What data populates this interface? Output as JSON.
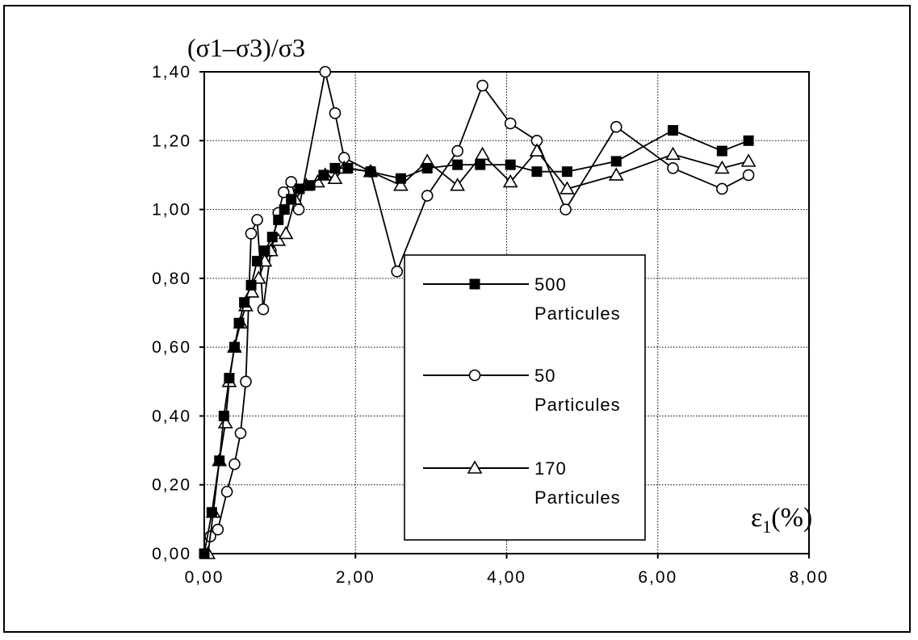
{
  "chart_data": {
    "type": "line",
    "ylabel": "(σ1–σ3)/σ3",
    "xlabel": "ε",
    "xlabel_sub": "1",
    "xlabel_suffix": "(%)",
    "xlim": [
      0,
      8
    ],
    "ylim": [
      0,
      1.4
    ],
    "x_ticks": [
      "0,00",
      "2,00",
      "4,00",
      "6,00",
      "8,00"
    ],
    "y_ticks": [
      "0,00",
      "0,20",
      "0,40",
      "0,60",
      "0,80",
      "1,00",
      "1,20",
      "1,40"
    ],
    "grid": true,
    "legend_position": "center",
    "series": [
      {
        "name": "500",
        "name_line2": "Particules",
        "marker": "filled-square",
        "points": [
          [
            0.0,
            0.0
          ],
          [
            0.1,
            0.12
          ],
          [
            0.2,
            0.27
          ],
          [
            0.26,
            0.4
          ],
          [
            0.33,
            0.51
          ],
          [
            0.4,
            0.6
          ],
          [
            0.46,
            0.67
          ],
          [
            0.53,
            0.73
          ],
          [
            0.62,
            0.78
          ],
          [
            0.7,
            0.85
          ],
          [
            0.8,
            0.88
          ],
          [
            0.9,
            0.92
          ],
          [
            0.98,
            0.97
          ],
          [
            1.06,
            1.0
          ],
          [
            1.15,
            1.03
          ],
          [
            1.26,
            1.06
          ],
          [
            1.4,
            1.07
          ],
          [
            1.58,
            1.1
          ],
          [
            1.73,
            1.12
          ],
          [
            1.9,
            1.12
          ],
          [
            2.2,
            1.11
          ],
          [
            2.6,
            1.09
          ],
          [
            2.95,
            1.12
          ],
          [
            3.35,
            1.13
          ],
          [
            3.65,
            1.13
          ],
          [
            4.05,
            1.13
          ],
          [
            4.4,
            1.11
          ],
          [
            4.8,
            1.11
          ],
          [
            5.45,
            1.14
          ],
          [
            6.2,
            1.23
          ],
          [
            6.85,
            1.17
          ],
          [
            7.2,
            1.2
          ]
        ]
      },
      {
        "name": "50",
        "name_line2": "Particules",
        "marker": "open-circle",
        "points": [
          [
            0.08,
            0.05
          ],
          [
            0.18,
            0.07
          ],
          [
            0.3,
            0.18
          ],
          [
            0.4,
            0.26
          ],
          [
            0.48,
            0.35
          ],
          [
            0.55,
            0.5
          ],
          [
            0.62,
            0.93
          ],
          [
            0.7,
            0.97
          ],
          [
            0.78,
            0.71
          ],
          [
            0.88,
            0.88
          ],
          [
            0.98,
            0.99
          ],
          [
            1.05,
            1.05
          ],
          [
            1.15,
            1.08
          ],
          [
            1.25,
            1.0
          ],
          [
            1.6,
            1.4
          ],
          [
            1.73,
            1.28
          ],
          [
            1.85,
            1.15
          ],
          [
            2.2,
            1.11
          ],
          [
            2.55,
            0.82
          ],
          [
            2.95,
            1.04
          ],
          [
            3.35,
            1.17
          ],
          [
            3.68,
            1.36
          ],
          [
            4.05,
            1.25
          ],
          [
            4.4,
            1.2
          ],
          [
            4.78,
            1.0
          ],
          [
            5.45,
            1.24
          ],
          [
            6.2,
            1.12
          ],
          [
            6.85,
            1.06
          ],
          [
            7.2,
            1.1
          ]
        ]
      },
      {
        "name": "170",
        "name_line2": "Particules",
        "marker": "open-triangle",
        "points": [
          [
            0.05,
            0.0
          ],
          [
            0.12,
            0.12
          ],
          [
            0.2,
            0.27
          ],
          [
            0.28,
            0.38
          ],
          [
            0.33,
            0.5
          ],
          [
            0.4,
            0.6
          ],
          [
            0.48,
            0.67
          ],
          [
            0.55,
            0.72
          ],
          [
            0.63,
            0.76
          ],
          [
            0.72,
            0.8
          ],
          [
            0.8,
            0.85
          ],
          [
            0.88,
            0.88
          ],
          [
            0.98,
            0.91
          ],
          [
            1.08,
            0.93
          ],
          [
            1.2,
            1.03
          ],
          [
            1.35,
            1.07
          ],
          [
            1.5,
            1.08
          ],
          [
            1.6,
            1.1
          ],
          [
            1.73,
            1.09
          ],
          [
            1.85,
            1.12
          ],
          [
            2.2,
            1.11
          ],
          [
            2.6,
            1.07
          ],
          [
            2.95,
            1.14
          ],
          [
            3.35,
            1.07
          ],
          [
            3.68,
            1.16
          ],
          [
            4.05,
            1.08
          ],
          [
            4.4,
            1.17
          ],
          [
            4.8,
            1.06
          ],
          [
            5.45,
            1.1
          ],
          [
            6.2,
            1.16
          ],
          [
            6.85,
            1.12
          ],
          [
            7.2,
            1.14
          ]
        ]
      }
    ]
  }
}
